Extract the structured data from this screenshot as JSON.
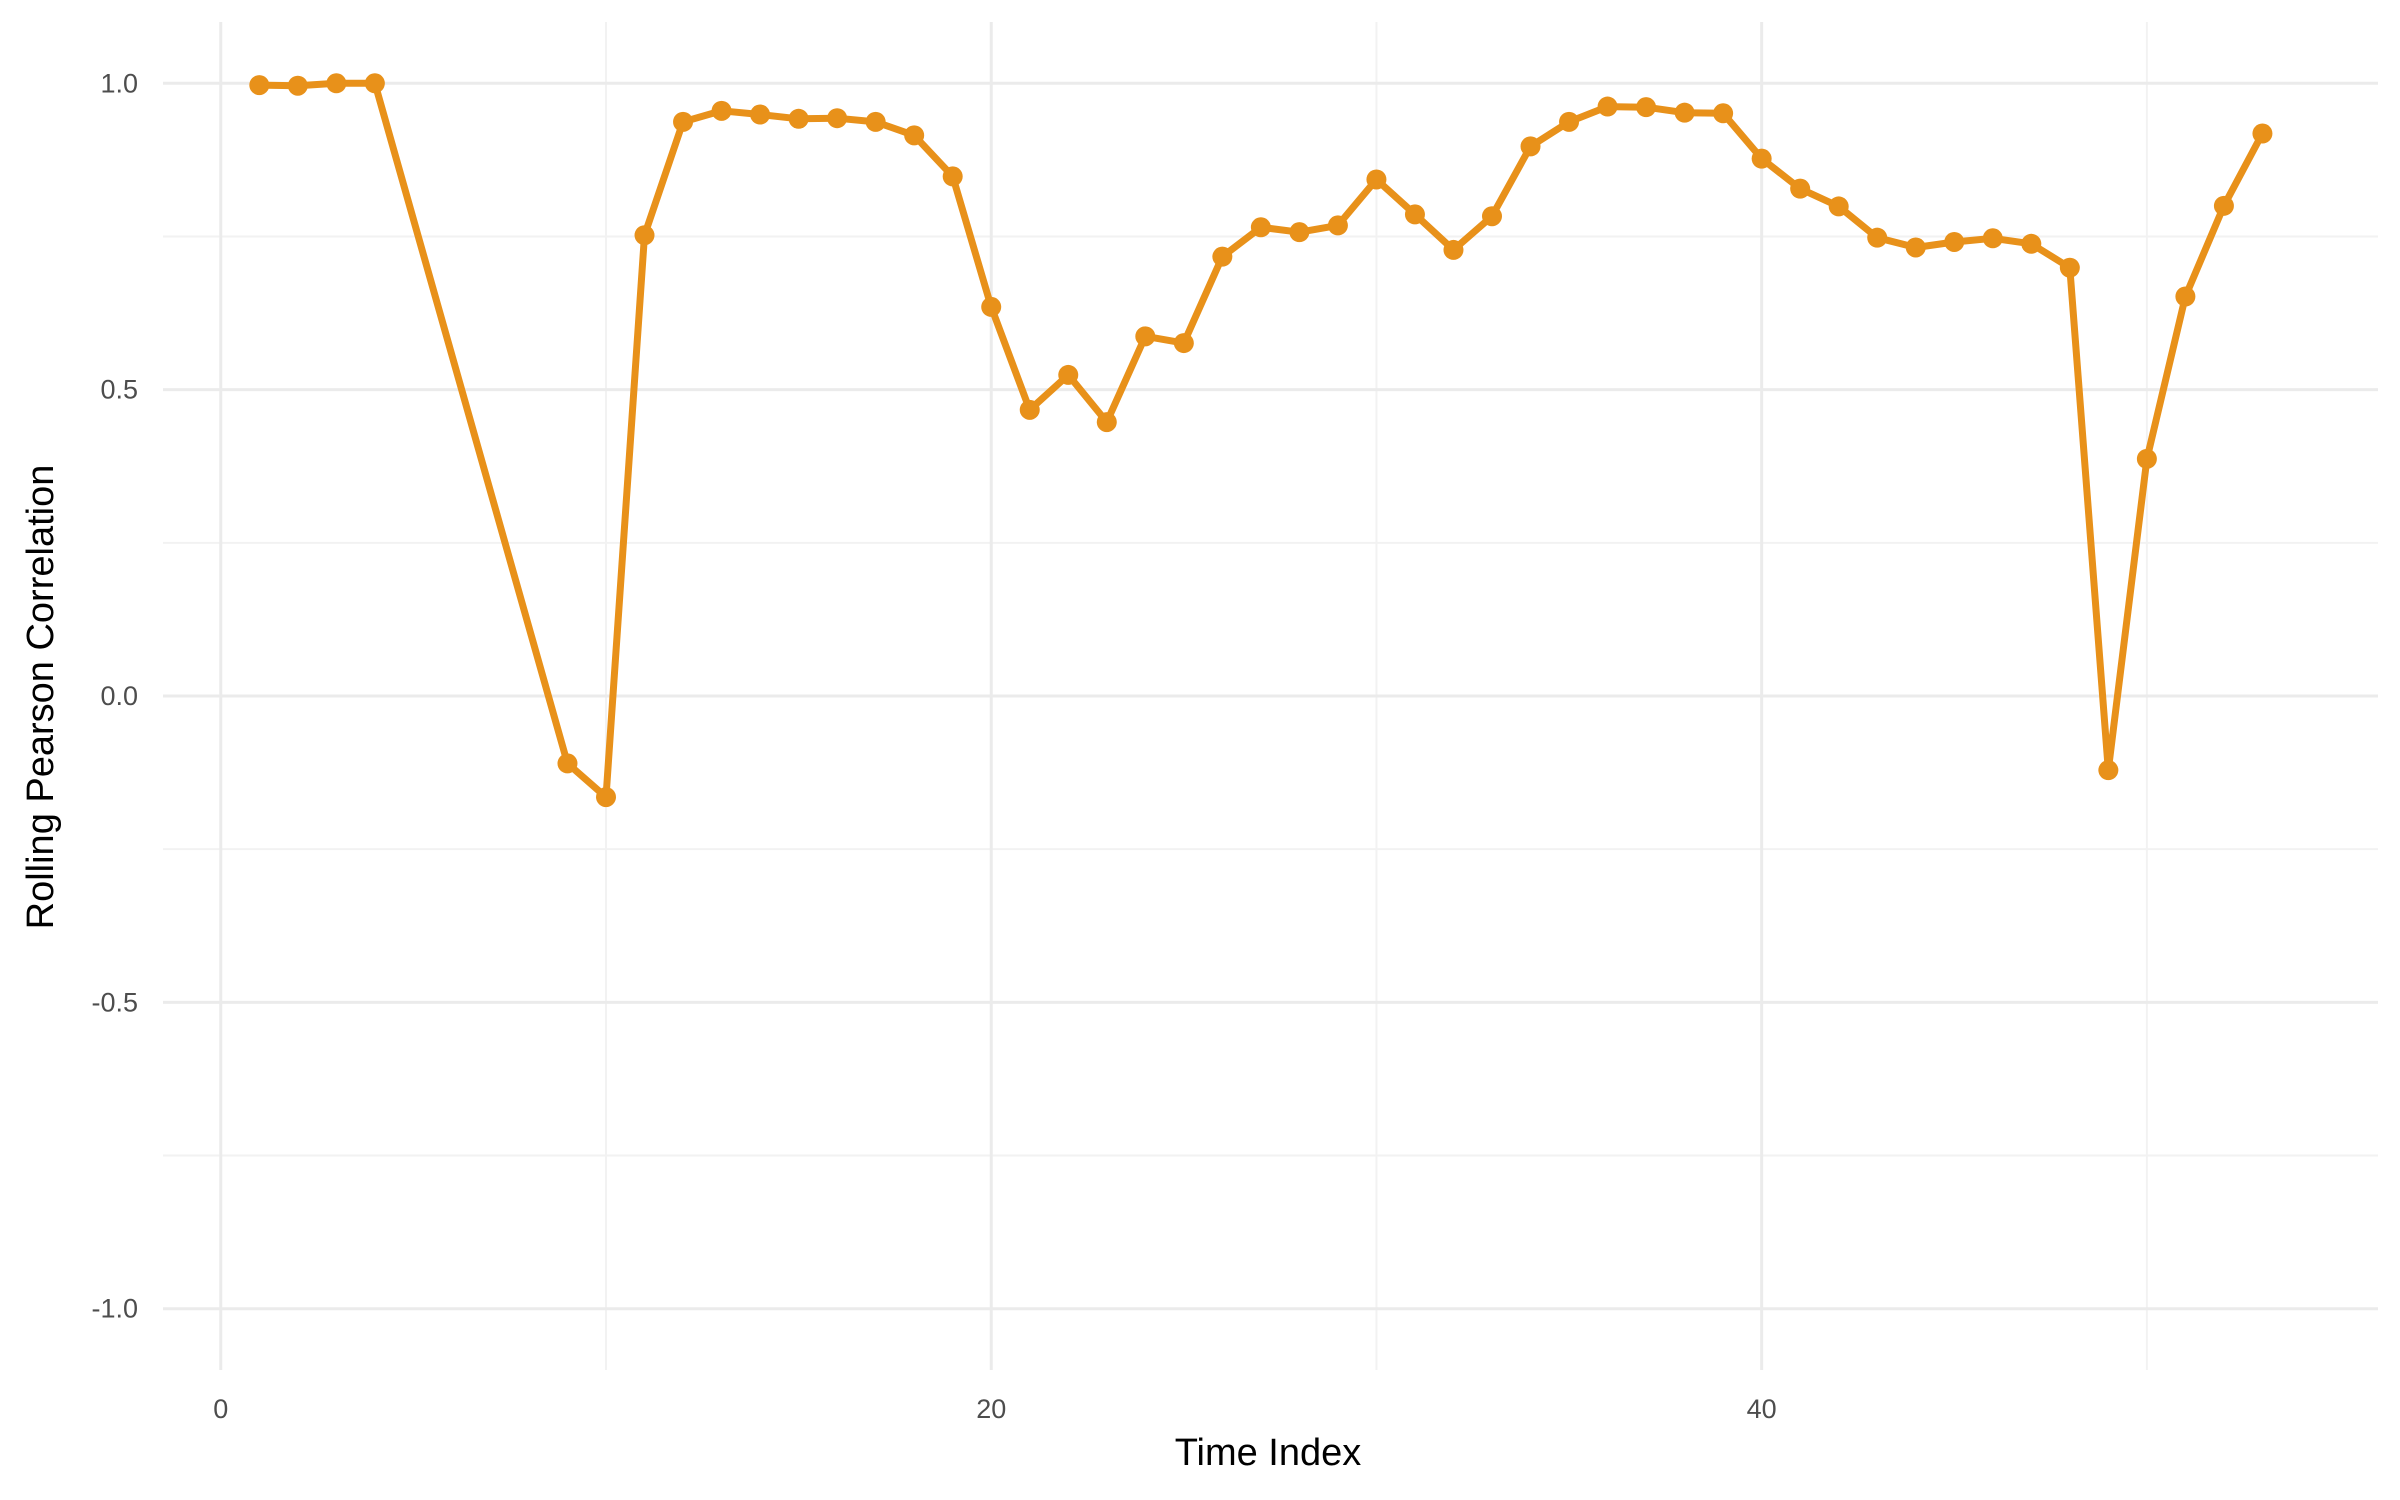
{
  "chart_data": {
    "type": "line",
    "title": "",
    "xlabel": "Time Index",
    "ylabel": "Rolling Pearson Correlation",
    "xlim": [
      -1.5,
      56
    ],
    "ylim": [
      -1.1,
      1.1
    ],
    "x_ticks": [
      0,
      20,
      40
    ],
    "x_tick_labels": [
      "0",
      "20",
      "40"
    ],
    "x_minor_ticks": [
      10,
      30,
      50
    ],
    "y_ticks": [
      -1.0,
      -0.5,
      0.0,
      0.5,
      1.0
    ],
    "y_tick_labels": [
      "-1.0",
      "-0.5",
      "0.0",
      "0.5",
      "1.0"
    ],
    "y_minor_ticks": [
      -0.75,
      -0.25,
      0.25,
      0.75
    ],
    "grid": true,
    "series": [
      {
        "color": "#E8911A",
        "x": [
          1,
          2,
          3,
          4,
          9,
          10,
          11,
          12,
          13,
          14,
          15,
          16,
          17,
          18,
          19,
          20,
          21,
          22,
          23,
          24,
          25,
          26,
          27,
          28,
          29,
          30,
          31,
          32,
          33,
          34,
          35,
          36,
          37,
          38,
          39,
          40,
          41,
          42,
          43,
          44,
          45,
          46,
          47,
          48,
          49,
          50,
          51,
          52,
          53
        ],
        "y": [
          0.997,
          0.996,
          1.0,
          1.0,
          -0.11,
          -0.165,
          0.752,
          0.937,
          0.955,
          0.949,
          0.942,
          0.943,
          0.937,
          0.915,
          0.848,
          0.635,
          0.467,
          0.524,
          0.447,
          0.587,
          0.576,
          0.717,
          0.765,
          0.757,
          0.768,
          0.843,
          0.786,
          0.728,
          0.783,
          0.897,
          0.937,
          0.962,
          0.961,
          0.952,
          0.951,
          0.877,
          0.828,
          0.799,
          0.748,
          0.732,
          0.741,
          0.747,
          0.738,
          0.699,
          -0.121,
          0.387,
          0.652,
          0.8,
          0.918
        ]
      }
    ]
  }
}
